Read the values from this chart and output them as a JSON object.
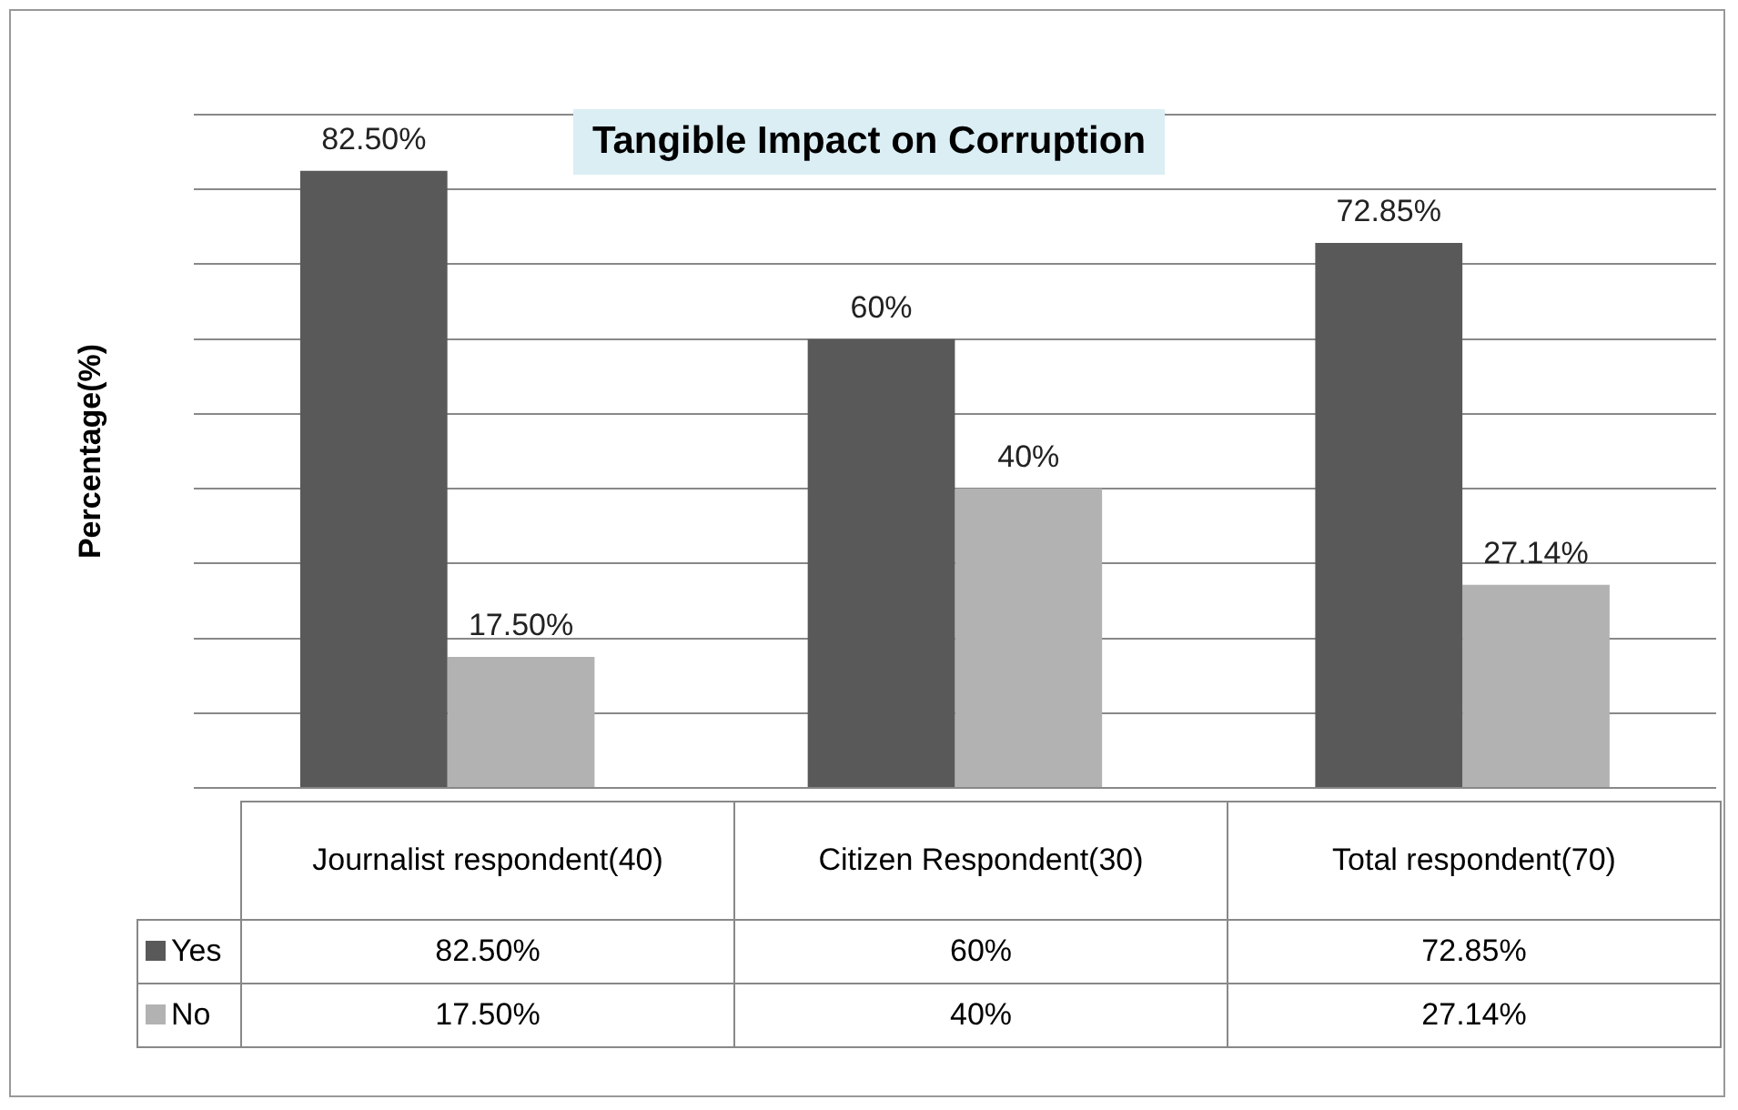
{
  "chart_data": {
    "type": "bar",
    "title": "Tangible Impact on Corruption",
    "ylabel": "Percentage(%)",
    "categories": [
      "Journalist respondent(40)",
      "Citizen Respondent(30)",
      "Total respondent(70)"
    ],
    "series": [
      {
        "name": "Yes",
        "color": "#595959",
        "values": [
          82.5,
          60,
          72.85
        ],
        "value_labels": [
          "82.50%",
          "60%",
          "72.85%"
        ]
      },
      {
        "name": "No",
        "color": "#b2b2b2",
        "values": [
          17.5,
          40,
          27.14
        ],
        "value_labels": [
          "17.50%",
          "40%",
          "27.14%"
        ]
      }
    ],
    "ylim": [
      0,
      90
    ],
    "yticks": [
      {
        "value": 0,
        "label": null
      },
      {
        "value": 10,
        "label": null
      },
      {
        "value": 20,
        "label": null
      },
      {
        "value": 30,
        "label": null
      },
      {
        "value": 40,
        "label": null
      },
      {
        "value": 50,
        "label": null
      },
      {
        "value": 60,
        "label": null
      },
      {
        "value": 70,
        "label": null
      },
      {
        "value": 80,
        "label": null
      },
      {
        "value": 90,
        "label": null
      }
    ],
    "grid": "y",
    "legend": "bottom"
  }
}
